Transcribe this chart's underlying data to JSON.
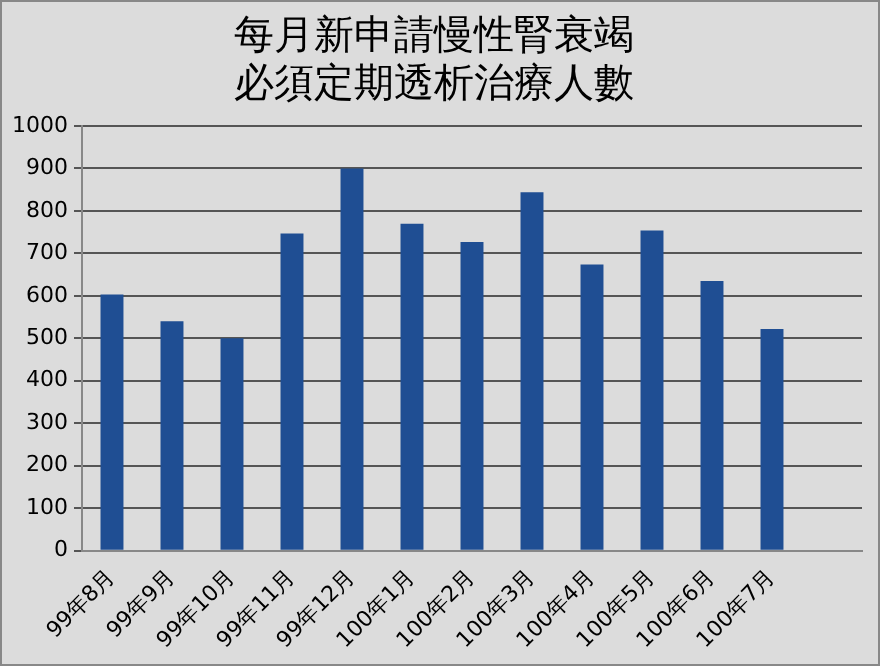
{
  "chart_data": {
    "type": "bar",
    "title": "每月新申請慢性腎衰竭必須定期透析治療人數",
    "categories": [
      "99年8月",
      "99年9月",
      "99年10月",
      "99年11月",
      "99年12月",
      "100年1月",
      "100年2月",
      "100年3月",
      "100年4月",
      "100年5月",
      "100年6月",
      "100年7月",
      null
    ],
    "values": [
      603,
      540,
      500,
      747,
      900,
      770,
      727,
      844,
      674,
      754,
      635,
      522,
      null
    ],
    "color": "#1f4e93",
    "ylim": [
      0,
      1000
    ],
    "yticks": [
      0,
      100,
      200,
      300,
      400,
      500,
      600,
      700,
      800,
      900,
      1000
    ],
    "grid": "y",
    "legend": false
  }
}
